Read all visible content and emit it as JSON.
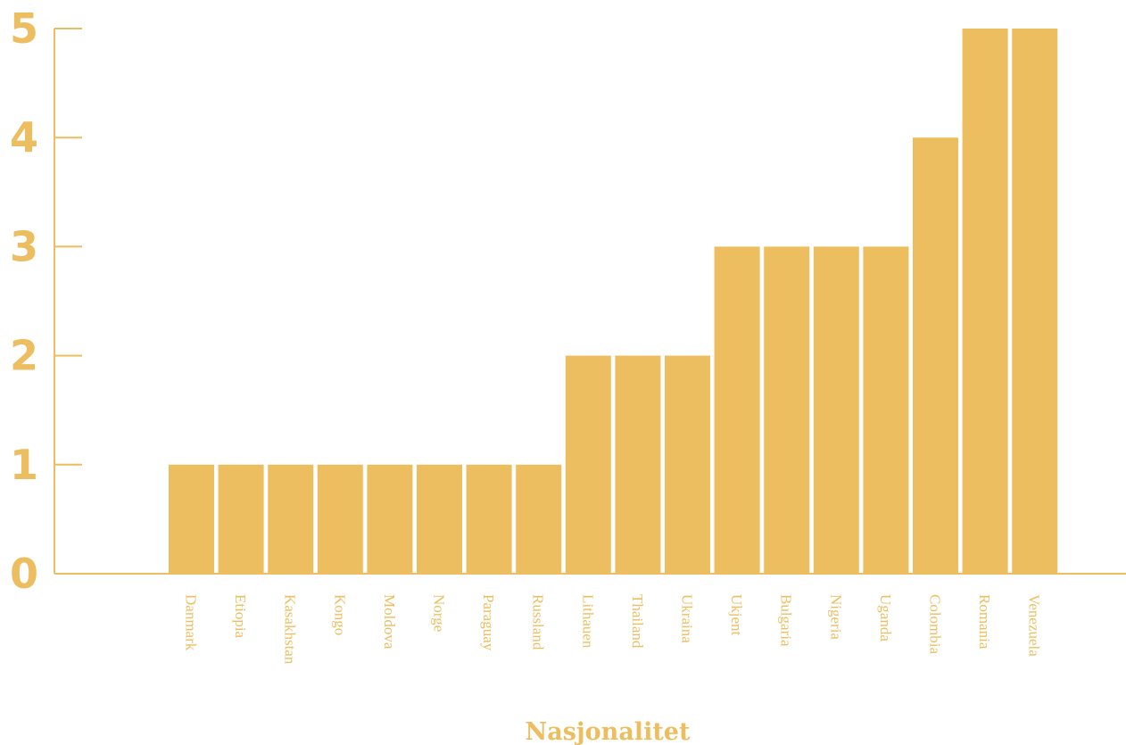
{
  "colors": {
    "bar": "#ecbe60",
    "axis": "#ecbe60",
    "text": "#ecbe60"
  },
  "chart_data": {
    "type": "bar",
    "title": "",
    "xlabel": "Nasjonalitet",
    "ylabel": "",
    "ylim": [
      0,
      5
    ],
    "yticks": [
      0,
      1,
      2,
      3,
      4,
      5
    ],
    "grid": false,
    "categories": [
      "Danmark",
      "Etiopia",
      "Kasakhstan",
      "Kongo",
      "Moldova",
      "Norge",
      "Paraguay",
      "Russland",
      "Lithauen",
      "Thailand",
      "Ukraina",
      "Ukjent",
      "Bulgaria",
      "Nigeria",
      "Uganda",
      "Colombia",
      "Romania",
      "Venezuela"
    ],
    "values": [
      1,
      1,
      1,
      1,
      1,
      1,
      1,
      1,
      2,
      2,
      2,
      3,
      3,
      3,
      3,
      4,
      5,
      5
    ]
  }
}
